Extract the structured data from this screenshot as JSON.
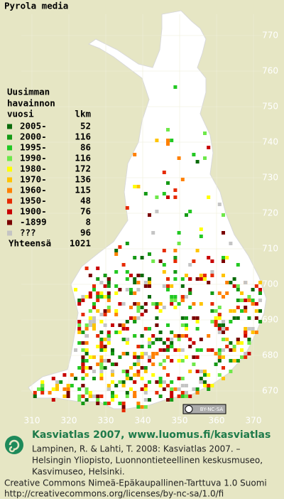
{
  "title": "Pyrola media",
  "legend": {
    "heading": [
      "Uusimman",
      "havainnon",
      "vuosi"
    ],
    "count_heading": "lkm",
    "entries": [
      {
        "label": "2005-",
        "count": 52,
        "color": "#0b6b0b"
      },
      {
        "label": "2000-",
        "count": 116,
        "color": "#159a15"
      },
      {
        "label": "1995-",
        "count": 86,
        "color": "#22c822"
      },
      {
        "label": "1990-",
        "count": 116,
        "color": "#6ee84a"
      },
      {
        "label": "1980-",
        "count": 172,
        "color": "#ffff00"
      },
      {
        "label": "1970-",
        "count": 136,
        "color": "#ffc400"
      },
      {
        "label": "1960-",
        "count": 115,
        "color": "#ff8000"
      },
      {
        "label": "1950-",
        "count": 48,
        "color": "#e62a00"
      },
      {
        "label": "1900-",
        "count": 76,
        "color": "#c80000"
      },
      {
        "label": "-1899",
        "count": 8,
        "color": "#7a0000"
      },
      {
        "label": "???",
        "count": 96,
        "color": "#c4c4c4"
      }
    ],
    "total_label": "Yhteensä",
    "total": 1021
  },
  "axes": {
    "y_labels": [
      770,
      760,
      750,
      740,
      730,
      720,
      710,
      700,
      690,
      680,
      670
    ],
    "x_labels": [
      310,
      320,
      330,
      340,
      350,
      360,
      370
    ]
  },
  "license_badge": "BY-NC-SA",
  "footer": {
    "heading": "Kasviatlas 2007, www.luomus.fi/kasviatlas",
    "citation": [
      "Lampinen, R. & Lahti, T. 2008: Kasviatlas 2007. –",
      "Helsingin Yliopisto, Luonnontieteellinen keskusmuseo,",
      "Kasvimuseo, Helsinki."
    ],
    "license": [
      "Creative Commons Nimeä-Epäkaupallinen-Tarttuva 1.0 Suomi",
      "http://creativecommons.org/licenses/by-nc-sa/1.0/fi"
    ]
  }
}
